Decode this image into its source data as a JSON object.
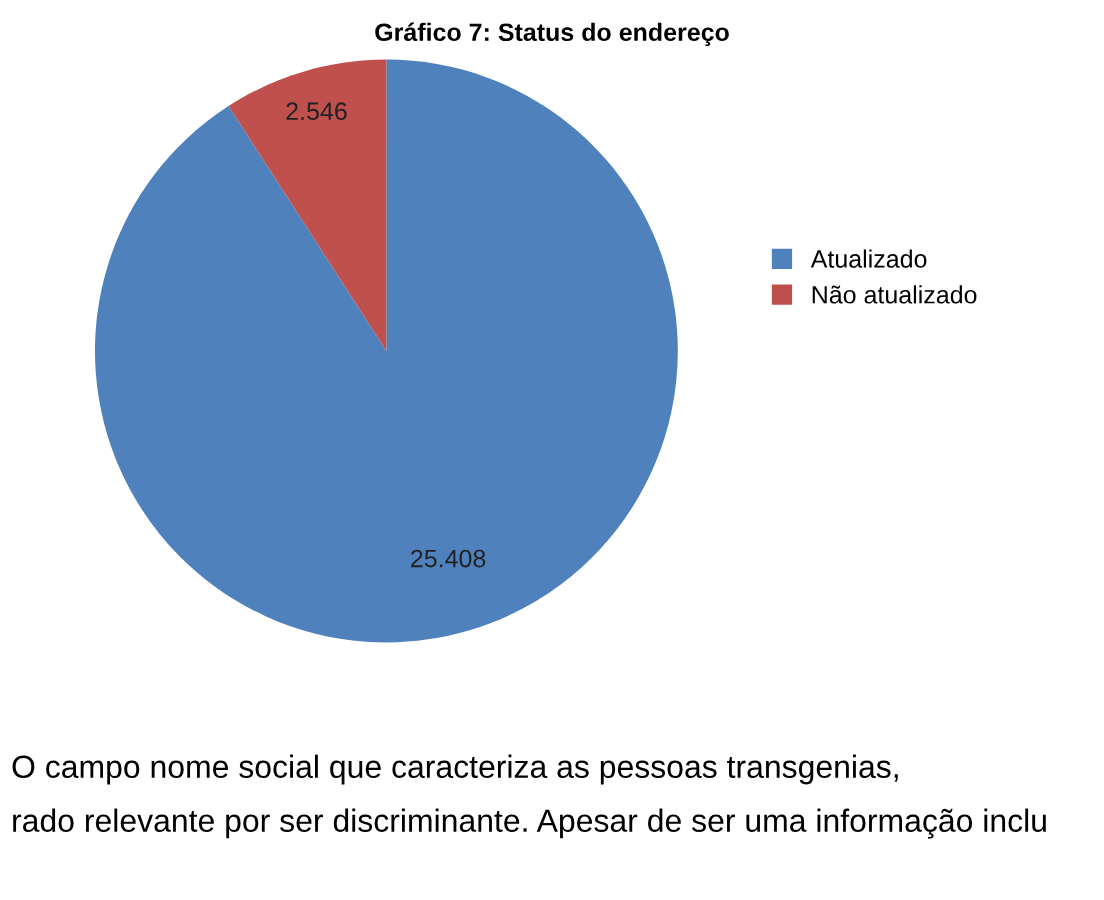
{
  "chart_data": {
    "type": "pie",
    "title": "Gráfico 7: Status do endereço",
    "categories": [
      "Atualizado",
      "Não atualizado"
    ],
    "values": [
      25408,
      2546
    ],
    "colors": [
      "#4f81bd",
      "#c0504d"
    ],
    "value_labels": [
      "25.408",
      "2.546"
    ],
    "legend": "right",
    "annotations": [
      "O campo nome social que caracteriza as pessoas transgenias,",
      "rado relevante por ser discriminante. Apesar de ser uma informação inclu"
    ]
  }
}
